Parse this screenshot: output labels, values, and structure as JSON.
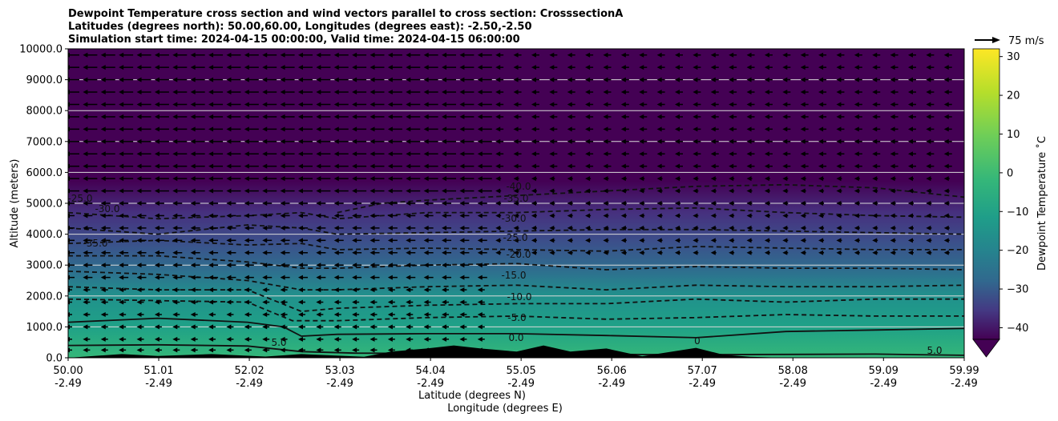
{
  "chart_data": {
    "type": "heatmap",
    "title_lines": [
      "Dewpoint Temperature cross section and wind vectors parallel to cross section: CrosssectionA",
      "Latitudes (degrees north): 50.00,60.00, Longitudes (degrees east): -2.50,-2.50",
      "Simulation start time: 2024-04-15 00:00:00, Valid time: 2024-04-15 06:00:00"
    ],
    "xlabel_lines": [
      "Latitude (degrees N)",
      "Longitude (degrees E)"
    ],
    "ylabel": "Altitude (meters)",
    "x_ticks": [
      {
        "lat": "50.00",
        "lon": "-2.49",
        "value": 50.0
      },
      {
        "lat": "51.01",
        "lon": "-2.49",
        "value": 51.01
      },
      {
        "lat": "52.02",
        "lon": "-2.49",
        "value": 52.02
      },
      {
        "lat": "53.03",
        "lon": "-2.49",
        "value": 53.03
      },
      {
        "lat": "54.04",
        "lon": "-2.49",
        "value": 54.04
      },
      {
        "lat": "55.05",
        "lon": "-2.49",
        "value": 55.05
      },
      {
        "lat": "56.06",
        "lon": "-2.49",
        "value": 56.06
      },
      {
        "lat": "57.07",
        "lon": "-2.49",
        "value": 57.07
      },
      {
        "lat": "58.08",
        "lon": "-2.49",
        "value": 58.08
      },
      {
        "lat": "59.09",
        "lon": "-2.49",
        "value": 59.09
      },
      {
        "lat": "59.99",
        "lon": "-2.49",
        "value": 59.99
      }
    ],
    "xlim": [
      50.0,
      59.99
    ],
    "y_ticks": [
      "0.0",
      "1000.0",
      "2000.0",
      "3000.0",
      "4000.0",
      "5000.0",
      "6000.0",
      "7000.0",
      "8000.0",
      "9000.0",
      "10000.0"
    ],
    "ylim": [
      0,
      10000
    ],
    "grid": "horizontal",
    "colorbar": {
      "label": "Dewpoint Temperature ˚C",
      "ticks": [
        "30",
        "20",
        "10",
        "0",
        "−10",
        "−20",
        "−30",
        "−40"
      ],
      "range": [
        -43,
        32
      ],
      "extend": "min"
    },
    "wind_key": {
      "label": "75 m/s",
      "value": 75
    },
    "contour_levels": [
      0,
      -5,
      -10,
      -15,
      -20,
      -25,
      -30,
      -35,
      -40
    ],
    "contour_labels": [
      "-40.0",
      "-35.0",
      "-30.0",
      "-25.0",
      "-20.0",
      "-15.0",
      "-10.0",
      "-5.0",
      "0.0",
      "5.0",
      "-25.0",
      "-30.0",
      "-35.0",
      "0",
      "5.0"
    ],
    "dewpoint_contours": [
      {
        "level": 5,
        "x": [
          50.0,
          51.0,
          52.0,
          52.6,
          53.2,
          54.0,
          55.0,
          56.0,
          57.0,
          58.0,
          59.0,
          59.99
        ],
        "alt": [
          400,
          420,
          380,
          200,
          150,
          140,
          120,
          110,
          100,
          110,
          120,
          80
        ]
      },
      {
        "level": 0,
        "x": [
          50.0,
          51.0,
          52.0,
          52.4,
          52.6,
          53.0,
          54.0,
          55.0,
          56.0,
          57.0,
          58.0,
          59.0,
          59.99
        ],
        "alt": [
          1150,
          1280,
          1150,
          1000,
          700,
          760,
          780,
          780,
          720,
          650,
          850,
          900,
          950
        ]
      },
      {
        "level": -5,
        "x": [
          50.0,
          51.0,
          52.0,
          52.5,
          53.0,
          54.0,
          55.0,
          56.0,
          57.0,
          58.0,
          59.0,
          59.99
        ],
        "alt": [
          1900,
          1850,
          1800,
          1200,
          1200,
          1300,
          1350,
          1250,
          1300,
          1400,
          1350,
          1350
        ]
      },
      {
        "level": -10,
        "x": [
          50.0,
          51.0,
          52.0,
          52.6,
          53.0,
          54.0,
          55.0,
          56.0,
          57.0,
          58.0,
          59.0,
          59.99
        ],
        "alt": [
          2300,
          2200,
          2200,
          1500,
          1600,
          1700,
          1750,
          1750,
          1900,
          1800,
          1900,
          1900
        ]
      },
      {
        "level": -15,
        "x": [
          50.0,
          51.0,
          52.0,
          52.6,
          53.0,
          54.0,
          55.0,
          56.0,
          57.0,
          58.0,
          59.0,
          59.99
        ],
        "alt": [
          2800,
          2700,
          2500,
          2200,
          2200,
          2300,
          2350,
          2200,
          2350,
          2300,
          2300,
          2350
        ]
      },
      {
        "level": -20,
        "x": [
          50.0,
          51.0,
          52.0,
          52.6,
          53.0,
          54.0,
          55.0,
          56.0,
          57.0,
          58.0,
          59.0,
          59.99
        ],
        "alt": [
          3300,
          3300,
          3100,
          2900,
          2900,
          3000,
          3050,
          2850,
          2950,
          2900,
          2900,
          2850
        ]
      },
      {
        "level": -25,
        "x": [
          50.0,
          51.0,
          52.0,
          52.6,
          53.0,
          54.0,
          55.0,
          56.0,
          57.0,
          58.0,
          59.0,
          59.99
        ],
        "alt": [
          3700,
          3800,
          3650,
          3700,
          3500,
          3550,
          3500,
          3450,
          3600,
          3550,
          3500,
          3500
        ]
      },
      {
        "level": -30,
        "x": [
          50.0,
          51.0,
          52.0,
          52.6,
          53.0,
          54.0,
          55.0,
          56.0,
          57.0,
          58.0,
          59.0,
          59.99
        ],
        "alt": [
          4200,
          4000,
          4300,
          4200,
          4000,
          4050,
          4100,
          4150,
          4150,
          4100,
          4050,
          4000
        ]
      },
      {
        "level": -35,
        "x": [
          50.0,
          51.0,
          52.0,
          52.6,
          53.0,
          54.0,
          55.0,
          56.0,
          57.0,
          58.0,
          59.0,
          59.99
        ],
        "alt": [
          4700,
          4500,
          4600,
          4700,
          4500,
          4700,
          4700,
          4800,
          4850,
          4700,
          4600,
          4550
        ]
      },
      {
        "level": -40,
        "x": [
          53.0,
          53.5,
          54.0,
          55.0,
          56.0,
          57.0,
          58.0,
          59.0,
          59.99
        ],
        "alt": [
          4700,
          5000,
          5100,
          5250,
          5400,
          5550,
          5600,
          5500,
          5200
        ]
      }
    ],
    "terrain": {
      "x": [
        50.0,
        50.6,
        51.0,
        51.6,
        52.2,
        52.6,
        53.3,
        53.6,
        54.0,
        54.3,
        54.6,
        55.0,
        55.3,
        55.6,
        56.0,
        56.4,
        57.0,
        57.3,
        57.6,
        58.0,
        58.4,
        59.0,
        59.6,
        59.99
      ],
      "alt": [
        0,
        120,
        60,
        120,
        40,
        120,
        30,
        200,
        300,
        400,
        300,
        200,
        400,
        200,
        300,
        50,
        320,
        100,
        30,
        0,
        0,
        0,
        0,
        0
      ]
    },
    "wind_arrows": "westward (negative along-section) at altitudes 0–10000 m, strongest north of 50.4°N above 5000 m"
  }
}
